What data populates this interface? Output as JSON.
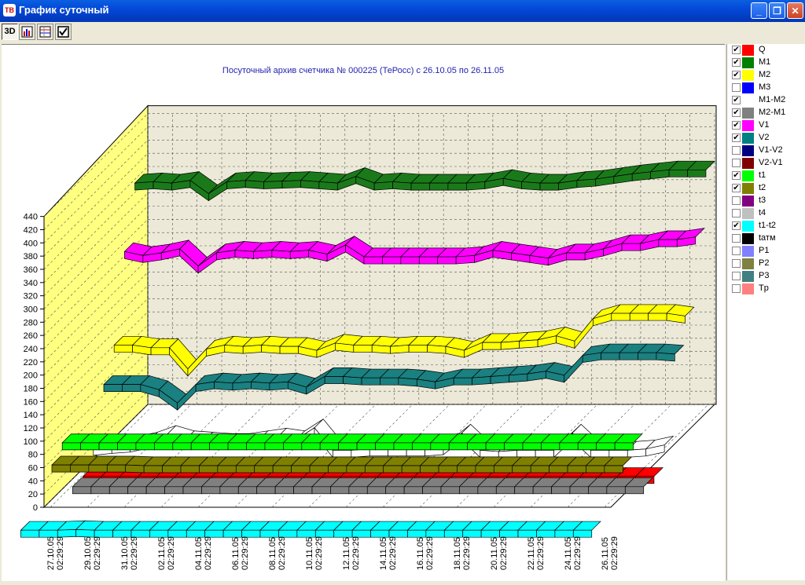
{
  "window": {
    "title": "График суточный",
    "icon_label": "ТВ",
    "minimize_icon": "_",
    "maximize_icon": "❐",
    "close_icon": "✕"
  },
  "toolbar": {
    "btn_3d_label": "3D",
    "icons": [
      "bar-chart-icon",
      "table-chart-icon",
      "checkbox-icon"
    ],
    "checkbox_glyph": "✔"
  },
  "chart_data": {
    "type": "line",
    "style": "3d-ribbon",
    "title": "Посуточный архив счетчика № 000225 (ТеРосс) с 26.10.05 по 26.11.05",
    "y_ticks": [
      "440",
      "420",
      "400",
      "380",
      "360",
      "340",
      "320",
      "300",
      "280",
      "260",
      "240",
      "220",
      "200",
      "180",
      "160",
      "140",
      "120",
      "100",
      "80",
      "60",
      "40",
      "20",
      "0"
    ],
    "x_labels": [
      {
        "date": "27.10.05",
        "time": "02:29:29"
      },
      {
        "date": "29.10.05",
        "time": "02:29:29"
      },
      {
        "date": "31.10.05",
        "time": "02:29:29"
      },
      {
        "date": "02.11.05",
        "time": "02:29:29"
      },
      {
        "date": "04.11.05",
        "time": "02:29:29"
      },
      {
        "date": "06.11.05",
        "time": "02:29:29"
      },
      {
        "date": "08.11.05",
        "time": "02:29:29"
      },
      {
        "date": "10.11.05",
        "time": "02:29:29"
      },
      {
        "date": "12.11.05",
        "time": "02:29:29"
      },
      {
        "date": "14.11.05",
        "time": "02:29:29"
      },
      {
        "date": "16.11.05",
        "time": "02:29:29"
      },
      {
        "date": "18.11.05",
        "time": "02:29:29"
      },
      {
        "date": "20.11.05",
        "time": "02:29:29"
      },
      {
        "date": "22.11.05",
        "time": "02:29:29"
      },
      {
        "date": "24.11.05",
        "time": "02:29:29"
      },
      {
        "date": "26.11.05",
        "time": "02:29:29"
      }
    ],
    "ylim": [
      0,
      440
    ],
    "grid": true,
    "series": [
      {
        "name": "M1",
        "color": "#1a7a1a",
        "depth": 8,
        "values": [
          366,
          368,
          366,
          370,
          350,
          368,
          370,
          368,
          369,
          370,
          368,
          366,
          376,
          366,
          368,
          366,
          366,
          366,
          366,
          368,
          373,
          368,
          366,
          366,
          370,
          372,
          376,
          380,
          383,
          386,
          386,
          386
        ]
      },
      {
        "name": "V1",
        "color": "#ff00ff",
        "depth": 7,
        "values": [
          278,
          272,
          276,
          282,
          256,
          276,
          280,
          278,
          280,
          278,
          280,
          274,
          288,
          270,
          270,
          270,
          270,
          270,
          270,
          272,
          280,
          276,
          272,
          268,
          276,
          276,
          282,
          290,
          290,
          296,
          296,
          300
        ]
      },
      {
        "name": "M2",
        "color": "#ffff00",
        "depth": 6,
        "values": [
          152,
          152,
          148,
          148,
          116,
          146,
          152,
          150,
          152,
          150,
          150,
          144,
          155,
          152,
          152,
          150,
          152,
          152,
          150,
          144,
          156,
          156,
          158,
          160,
          166,
          158,
          192,
          200,
          200,
          200,
          200,
          196
        ]
      },
      {
        "name": "V2",
        "color": "#1a8080",
        "depth": 5,
        "values": [
          108,
          108,
          108,
          100,
          80,
          108,
          112,
          110,
          112,
          110,
          112,
          104,
          120,
          120,
          118,
          118,
          118,
          116,
          112,
          118,
          118,
          120,
          122,
          124,
          128,
          122,
          152,
          156,
          156,
          156,
          156,
          154
        ]
      },
      {
        "name": "M1-M2",
        "color": "#ffffff",
        "depth": 4,
        "values": [
          27,
          30,
          32,
          38,
          48,
          40,
          38,
          36,
          36,
          40,
          44,
          40,
          58,
          24,
          24,
          26,
          26,
          26,
          26,
          28,
          50,
          24,
          22,
          24,
          24,
          24,
          50,
          24,
          24,
          24,
          26,
          32
        ]
      },
      {
        "name": "Q",
        "color": "#ff0000",
        "depth": 3,
        "values": [
          0,
          0,
          0,
          0,
          0,
          0,
          0,
          0,
          0,
          0,
          0,
          0,
          0,
          0,
          0,
          0,
          0,
          0,
          0,
          0,
          0,
          0,
          0,
          0,
          0,
          0,
          0,
          0,
          0,
          0,
          0,
          0
        ]
      },
      {
        "name": "M2-M1",
        "color": "#808080",
        "depth": 2,
        "values": [
          0,
          0,
          0,
          0,
          0,
          0,
          0,
          0,
          0,
          0,
          0,
          0,
          0,
          0,
          0,
          0,
          0,
          0,
          0,
          0,
          0,
          0,
          0,
          0,
          0,
          0,
          0,
          0,
          0,
          0,
          0,
          0
        ]
      },
      {
        "name": "t1",
        "color": "#00ff00",
        "depth": 1,
        "values": [
          82,
          82,
          82,
          82,
          82,
          82,
          82,
          82,
          82,
          82,
          82,
          82,
          82,
          82,
          82,
          82,
          82,
          82,
          82,
          82,
          82,
          82,
          82,
          82,
          82,
          82,
          82,
          82,
          82,
          82,
          82,
          82
        ]
      },
      {
        "name": "t2",
        "color": "#808000",
        "depth": 0,
        "values": [
          64,
          64,
          64,
          64,
          64,
          63,
          63,
          63,
          63,
          63,
          63,
          63,
          63,
          63,
          63,
          63,
          63,
          63,
          63,
          63,
          63,
          63,
          63,
          63,
          63,
          63,
          63,
          63,
          63,
          63,
          63,
          63
        ]
      },
      {
        "name": "t1-t2",
        "color": "#00ffff",
        "depth": -3,
        "values": [
          12,
          12,
          12,
          13,
          12,
          12,
          12,
          12,
          12,
          12,
          12,
          12,
          12,
          12,
          12,
          12,
          12,
          12,
          12,
          12,
          12,
          12,
          12,
          12,
          12,
          12,
          12,
          12,
          12,
          12,
          12,
          12
        ]
      }
    ]
  },
  "legend": [
    {
      "label": "Q",
      "color": "#ff0000",
      "checked": true
    },
    {
      "label": "M1",
      "color": "#008000",
      "checked": true
    },
    {
      "label": "M2",
      "color": "#ffff00",
      "checked": true
    },
    {
      "label": "M3",
      "color": "#0000ff",
      "checked": false
    },
    {
      "label": "M1-M2",
      "color": "#ffffff",
      "checked": true
    },
    {
      "label": "M2-M1",
      "color": "#808080",
      "checked": true
    },
    {
      "label": "V1",
      "color": "#ff00ff",
      "checked": true
    },
    {
      "label": "V2",
      "color": "#008080",
      "checked": true
    },
    {
      "label": "V1-V2",
      "color": "#000080",
      "checked": false
    },
    {
      "label": "V2-V1",
      "color": "#800000",
      "checked": false
    },
    {
      "label": "t1",
      "color": "#00ff00",
      "checked": true
    },
    {
      "label": "t2",
      "color": "#808000",
      "checked": true
    },
    {
      "label": "t3",
      "color": "#800080",
      "checked": false
    },
    {
      "label": "t4",
      "color": "#c0c0c0",
      "checked": false
    },
    {
      "label": "t1-t2",
      "color": "#00ffff",
      "checked": true
    },
    {
      "label": "tатм",
      "color": "#000000",
      "checked": false
    },
    {
      "label": "P1",
      "color": "#8080ff",
      "checked": false
    },
    {
      "label": "P2",
      "color": "#808040",
      "checked": false
    },
    {
      "label": "P3",
      "color": "#408080",
      "checked": false
    },
    {
      "label": "Tp",
      "color": "#ff8080",
      "checked": false
    }
  ]
}
